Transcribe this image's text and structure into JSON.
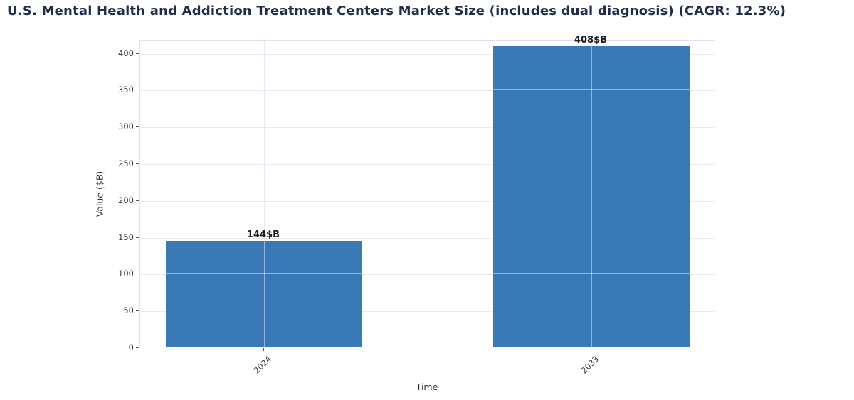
{
  "chart_data": {
    "type": "bar",
    "title": "U.S. Mental Health and Addiction Treatment Centers Market Size (includes dual diagnosis) (CAGR: 12.3%)",
    "categories": [
      "2024",
      "2033"
    ],
    "values": [
      144,
      408
    ],
    "bar_labels": [
      "144$B",
      "408$B"
    ],
    "xlabel": "Time",
    "ylabel": "Value ($B)",
    "yticks": [
      0,
      50,
      100,
      150,
      200,
      250,
      300,
      350,
      400
    ],
    "ylim": [
      0,
      417
    ],
    "grid": true,
    "legend_position": "none",
    "bar_color": "#3a79b8",
    "title_color": "#222d49",
    "tick_label_color": "#3c3c3c",
    "grid_color": "#e7eaf2"
  }
}
